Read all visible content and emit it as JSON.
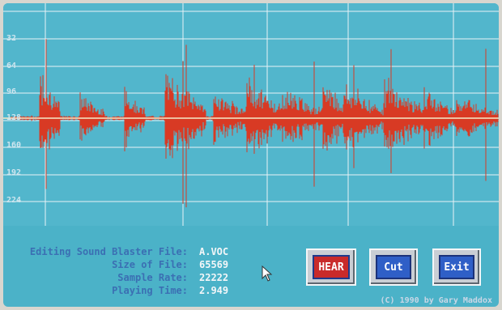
{
  "waveform": {
    "y_axis_labels": [
      "32",
      "64",
      "96",
      "128",
      "160",
      "192",
      "224"
    ],
    "colors": {
      "background": "#52b6cc",
      "wave": "#d83a24",
      "grid": "#e8f2f6"
    }
  },
  "info": {
    "file_label": "Editing Sound Blaster File:",
    "file_value": "A.VOC",
    "size_label": "Size of File:",
    "size_value": "65569",
    "rate_label": "Sample Rate:",
    "rate_value": "22222",
    "time_label": "Playing Time:",
    "time_value": "2.949"
  },
  "buttons": {
    "hear_label": "HEAR",
    "cut_label": "Cut",
    "exit_label": "Exit"
  },
  "copyright": "(C) 1990 by Gary Maddox"
}
